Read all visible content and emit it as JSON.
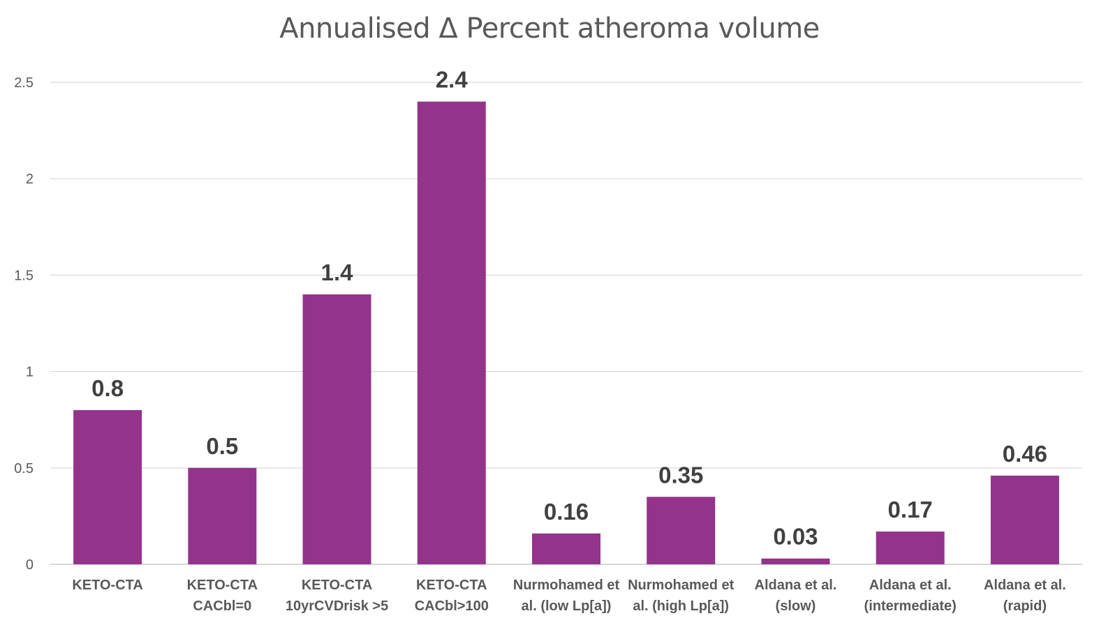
{
  "chart_data": {
    "type": "bar",
    "title": "Annualised Δ Percent atheroma volume",
    "xlabel": "",
    "ylabel": "",
    "ylim": [
      0,
      2.5
    ],
    "yticks": [
      "0",
      "0.5",
      "1",
      "1.5",
      "2",
      "2.5"
    ],
    "ytick_values": [
      0,
      0.5,
      1,
      1.5,
      2,
      2.5
    ],
    "grid": true,
    "legend": "none",
    "bar_color": "#93348a",
    "categories": [
      [
        "KETO-CTA"
      ],
      [
        "KETO-CTA",
        "CACbl=0"
      ],
      [
        "KETO-CTA",
        "10yrCVDrisk >5"
      ],
      [
        "KETO-CTA",
        "CACbl>100"
      ],
      [
        "Nurmohamed et",
        "al. (low Lp[a])"
      ],
      [
        "Nurmohamed et",
        "al. (high Lp[a])"
      ],
      [
        "Aldana et al.",
        "(slow)"
      ],
      [
        "Aldana et al.",
        "(intermediate)"
      ],
      [
        "Aldana et al.",
        "(rapid)"
      ]
    ],
    "values": [
      0.8,
      0.5,
      1.4,
      2.4,
      0.16,
      0.35,
      0.03,
      0.17,
      0.46
    ],
    "data_labels": [
      "0.8",
      "0.5",
      "1.4",
      "2.4",
      "0.16",
      "0.35",
      "0.03",
      "0.17",
      "0.46"
    ]
  }
}
